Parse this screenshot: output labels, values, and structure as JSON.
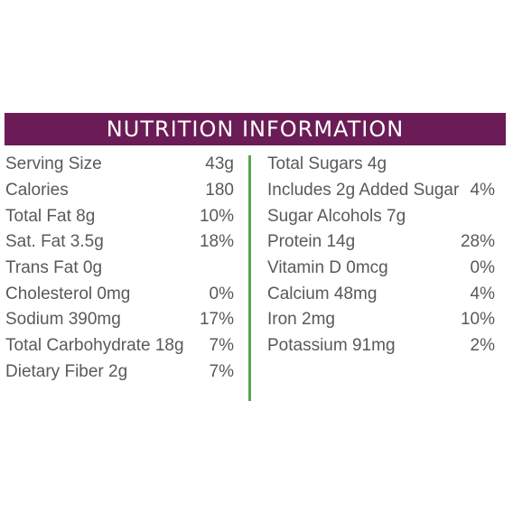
{
  "header": {
    "title": "NUTRITION INFORMATION"
  },
  "left_column": [
    {
      "label": "Serving Size",
      "value": "43g"
    },
    {
      "label": "Calories",
      "value": "180"
    },
    {
      "label": "Total Fat 8g",
      "value": "10%"
    },
    {
      "label": "Sat. Fat 3.5g",
      "value": "18%"
    },
    {
      "label": "Trans Fat 0g",
      "value": ""
    },
    {
      "label": "Cholesterol 0mg",
      "value": "0%"
    },
    {
      "label": "Sodium 390mg",
      "value": "17%"
    },
    {
      "label": "Total Carbohydrate 18g",
      "value": "7%"
    },
    {
      "label": "Dietary Fiber 2g",
      "value": "7%"
    }
  ],
  "right_column": [
    {
      "label": "Total Sugars 4g",
      "value": ""
    },
    {
      "label": "Includes 2g Added Sugar",
      "value": "4%"
    },
    {
      "label": "Sugar Alcohols 7g",
      "value": ""
    },
    {
      "label": "Protein 14g",
      "value": "28%"
    },
    {
      "label": "Vitamin D 0mcg",
      "value": "0%"
    },
    {
      "label": "Calcium 48mg",
      "value": "4%"
    },
    {
      "label": "Iron 2mg",
      "value": "10%"
    },
    {
      "label": "Potassium 91mg",
      "value": "2%"
    }
  ],
  "colors": {
    "banner": "#6b1c56",
    "divider": "#5aa552",
    "text": "#58595b"
  }
}
